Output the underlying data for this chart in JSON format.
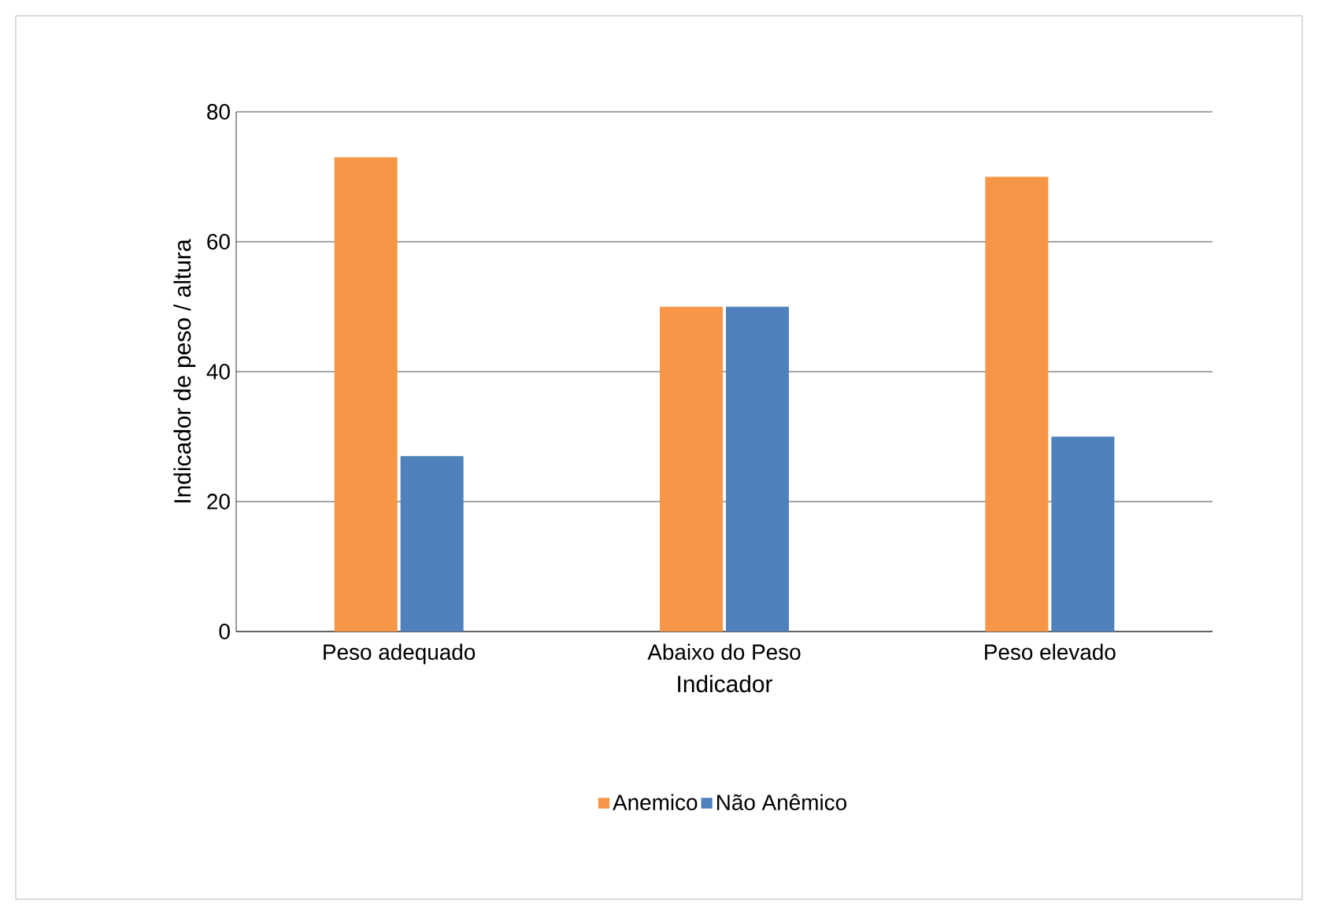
{
  "chart_data": {
    "type": "bar",
    "xlabel": "Indicador",
    "ylabel": "Indicador de peso / altura",
    "categories": [
      "Peso adequado",
      "Abaixo do Peso",
      "Peso elevado"
    ],
    "series": [
      {
        "name": "Anemico",
        "color": "#f79646",
        "values": [
          73,
          50,
          70
        ]
      },
      {
        "name": "Não Anêmico",
        "color": "#4f81bd",
        "values": [
          27,
          50,
          30
        ]
      }
    ],
    "ylim": [
      0,
      80
    ],
    "yticks": [
      0,
      20,
      40,
      60,
      80
    ],
    "grid": "y",
    "legend": "bottom"
  }
}
